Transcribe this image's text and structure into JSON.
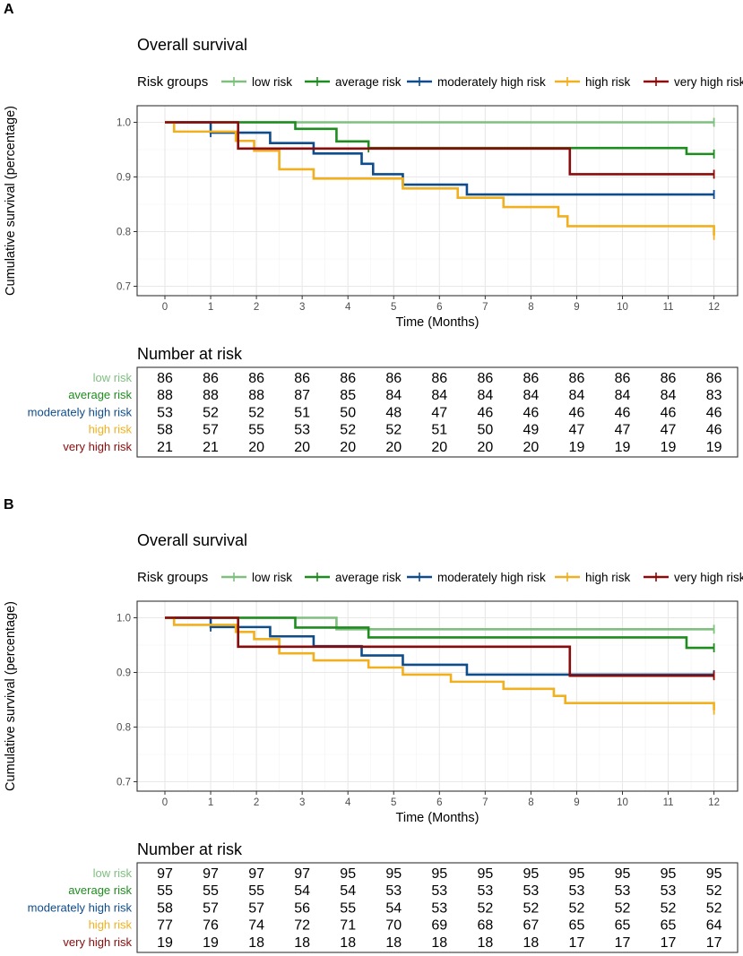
{
  "chart_data": [
    {
      "panel_label": "A",
      "type": "line",
      "title": "Overall survival",
      "legend_title": "Risk groups",
      "xlabel": "Time (Months)",
      "ylabel": "Cumulative survival (percentage)",
      "xlim": [
        0,
        12
      ],
      "ylim": [
        0.7,
        1.0
      ],
      "x_ticks": [
        "0",
        "1",
        "2",
        "3",
        "4",
        "5",
        "6",
        "7",
        "8",
        "9",
        "10",
        "11",
        "12"
      ],
      "y_ticks": [
        "0.7",
        "0.8",
        "0.9",
        "1.0"
      ],
      "y_tick_values": [
        0.7,
        0.8,
        0.9,
        1.0
      ],
      "series": [
        {
          "name": "low risk",
          "color": "#7fbf7f",
          "steps": [
            [
              0,
              1.0
            ],
            [
              12,
              1.0
            ]
          ],
          "censor": [
            12
          ]
        },
        {
          "name": "average risk",
          "color": "#1f8c1f",
          "steps": [
            [
              0,
              1.0
            ],
            [
              2.85,
              0.988
            ],
            [
              3.75,
              0.965
            ],
            [
              4.45,
              0.953
            ],
            [
              11.4,
              0.942
            ],
            [
              12,
              0.942
            ]
          ],
          "censor": [
            4.45,
            12
          ]
        },
        {
          "name": "moderately high risk",
          "color": "#0f4c8c",
          "steps": [
            [
              0,
              1.0
            ],
            [
              1.0,
              0.981
            ],
            [
              2.3,
              0.962
            ],
            [
              3.25,
              0.943
            ],
            [
              4.3,
              0.924
            ],
            [
              4.55,
              0.905
            ],
            [
              5.2,
              0.886
            ],
            [
              6.6,
              0.868
            ],
            [
              12,
              0.868
            ]
          ],
          "censor": [
            1.0,
            12
          ]
        },
        {
          "name": "high risk",
          "color": "#f0b020",
          "steps": [
            [
              0,
              1.0
            ],
            [
              0.2,
              0.983
            ],
            [
              1.55,
              0.966
            ],
            [
              1.95,
              0.948
            ],
            [
              2.5,
              0.914
            ],
            [
              3.25,
              0.897
            ],
            [
              5.2,
              0.879
            ],
            [
              6.4,
              0.862
            ],
            [
              7.4,
              0.845
            ],
            [
              8.6,
              0.828
            ],
            [
              8.8,
              0.81
            ],
            [
              12,
              0.793
            ]
          ],
          "censor": [
            12
          ]
        },
        {
          "name": "very high risk",
          "color": "#8b0a0a",
          "steps": [
            [
              0,
              1.0
            ],
            [
              1.6,
              0.952
            ],
            [
              8.85,
              0.905
            ],
            [
              12,
              0.905
            ]
          ],
          "censor": [
            12
          ]
        }
      ],
      "risk_table": {
        "title": "Number at risk",
        "rows": [
          {
            "label": "low risk",
            "color": "#7fbf7f",
            "values": [
              "86",
              "86",
              "86",
              "86",
              "86",
              "86",
              "86",
              "86",
              "86",
              "86",
              "86",
              "86",
              "86"
            ]
          },
          {
            "label": "average risk",
            "color": "#1f8c1f",
            "values": [
              "88",
              "88",
              "88",
              "87",
              "85",
              "84",
              "84",
              "84",
              "84",
              "84",
              "84",
              "84",
              "83"
            ]
          },
          {
            "label": "moderately high risk",
            "color": "#0f4c8c",
            "values": [
              "53",
              "52",
              "52",
              "51",
              "50",
              "48",
              "47",
              "46",
              "46",
              "46",
              "46",
              "46",
              "46"
            ]
          },
          {
            "label": "high risk",
            "color": "#f0b020",
            "values": [
              "58",
              "57",
              "55",
              "53",
              "52",
              "52",
              "51",
              "50",
              "49",
              "47",
              "47",
              "47",
              "46"
            ]
          },
          {
            "label": "very high risk",
            "color": "#8b0a0a",
            "values": [
              "21",
              "21",
              "20",
              "20",
              "20",
              "20",
              "20",
              "20",
              "20",
              "19",
              "19",
              "19",
              "19"
            ]
          }
        ]
      }
    },
    {
      "panel_label": "B",
      "type": "line",
      "title": "Overall survival",
      "legend_title": "Risk groups",
      "xlabel": "Time (Months)",
      "ylabel": "Cumulative survival (percentage)",
      "xlim": [
        0,
        12
      ],
      "ylim": [
        0.7,
        1.0
      ],
      "x_ticks": [
        "0",
        "1",
        "2",
        "3",
        "4",
        "5",
        "6",
        "7",
        "8",
        "9",
        "10",
        "11",
        "12"
      ],
      "y_ticks": [
        "0.7",
        "0.8",
        "0.9",
        "1.0"
      ],
      "y_tick_values": [
        0.7,
        0.8,
        0.9,
        1.0
      ],
      "series": [
        {
          "name": "low risk",
          "color": "#7fbf7f",
          "steps": [
            [
              0,
              1.0
            ],
            [
              3.75,
              0.979
            ],
            [
              12,
              0.979
            ]
          ],
          "censor": [
            12
          ]
        },
        {
          "name": "average risk",
          "color": "#1f8c1f",
          "steps": [
            [
              0,
              1.0
            ],
            [
              2.85,
              0.982
            ],
            [
              4.45,
              0.964
            ],
            [
              11.4,
              0.945
            ],
            [
              12,
              0.945
            ]
          ],
          "censor": [
            12
          ]
        },
        {
          "name": "moderately high risk",
          "color": "#0f4c8c",
          "steps": [
            [
              0,
              1.0
            ],
            [
              1.0,
              0.983
            ],
            [
              2.3,
              0.966
            ],
            [
              3.25,
              0.948
            ],
            [
              4.3,
              0.931
            ],
            [
              5.2,
              0.914
            ],
            [
              6.6,
              0.896
            ],
            [
              12,
              0.896
            ]
          ],
          "censor": [
            1.0,
            12
          ]
        },
        {
          "name": "high risk",
          "color": "#f0b020",
          "steps": [
            [
              0,
              1.0
            ],
            [
              0.2,
              0.987
            ],
            [
              1.55,
              0.974
            ],
            [
              1.95,
              0.961
            ],
            [
              2.5,
              0.935
            ],
            [
              3.25,
              0.922
            ],
            [
              4.45,
              0.909
            ],
            [
              5.2,
              0.896
            ],
            [
              6.25,
              0.883
            ],
            [
              7.4,
              0.87
            ],
            [
              8.5,
              0.857
            ],
            [
              8.75,
              0.844
            ],
            [
              12,
              0.831
            ]
          ],
          "censor": [
            12
          ]
        },
        {
          "name": "very high risk",
          "color": "#8b0a0a",
          "steps": [
            [
              0,
              1.0
            ],
            [
              1.6,
              0.947
            ],
            [
              8.85,
              0.894
            ],
            [
              12,
              0.894
            ]
          ],
          "censor": [
            12
          ]
        }
      ],
      "risk_table": {
        "title": "Number at risk",
        "rows": [
          {
            "label": "low risk",
            "color": "#7fbf7f",
            "values": [
              "97",
              "97",
              "97",
              "97",
              "95",
              "95",
              "95",
              "95",
              "95",
              "95",
              "95",
              "95",
              "95"
            ]
          },
          {
            "label": "average risk",
            "color": "#1f8c1f",
            "values": [
              "55",
              "55",
              "55",
              "54",
              "54",
              "53",
              "53",
              "53",
              "53",
              "53",
              "53",
              "53",
              "52"
            ]
          },
          {
            "label": "moderately high risk",
            "color": "#0f4c8c",
            "values": [
              "58",
              "57",
              "57",
              "56",
              "55",
              "54",
              "53",
              "52",
              "52",
              "52",
              "52",
              "52",
              "52"
            ]
          },
          {
            "label": "high risk",
            "color": "#f0b020",
            "values": [
              "77",
              "76",
              "74",
              "72",
              "71",
              "70",
              "69",
              "68",
              "67",
              "65",
              "65",
              "65",
              "64"
            ]
          },
          {
            "label": "very high risk",
            "color": "#8b0a0a",
            "values": [
              "19",
              "19",
              "18",
              "18",
              "18",
              "18",
              "18",
              "18",
              "18",
              "17",
              "17",
              "17",
              "17"
            ]
          }
        ]
      }
    }
  ]
}
